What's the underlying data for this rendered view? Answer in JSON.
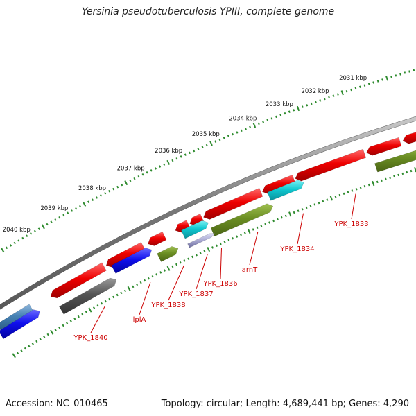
{
  "title": "Yersinia pseudotuberculosis YPIII, complete genome",
  "footer": {
    "accession_label": "Accession:",
    "accession": "NC_010465",
    "topology_label": "Topology:",
    "topology": "circular",
    "length_label": "Length:",
    "length": "4,689,441 bp",
    "genes_label": "Genes:",
    "genes": "4,290"
  },
  "scale_ticks": [
    "2031 kbp",
    "2032 kbp",
    "2033 kbp",
    "2034 kbp",
    "2035 kbp",
    "2036 kbp",
    "2037 kbp",
    "2038 kbp",
    "2039 kbp",
    "2040 kbp"
  ],
  "gene_labels": [
    "YPK_1833",
    "YPK_1834",
    "arnT",
    "YPK_1836",
    "YPK_1837",
    "YPK_1838",
    "lplA",
    "YPK_1840"
  ],
  "colors": {
    "backbone": "#7a7a7a",
    "scale_dots": "#2e8b2e",
    "label": "#cc0000",
    "gene_red": "#ee0000",
    "gene_blue": "#1010ee",
    "gene_olive": "#6b8e23",
    "gene_cyan": "#10c8d0",
    "gene_gray": "#555555",
    "gene_steel": "#4682b4"
  }
}
